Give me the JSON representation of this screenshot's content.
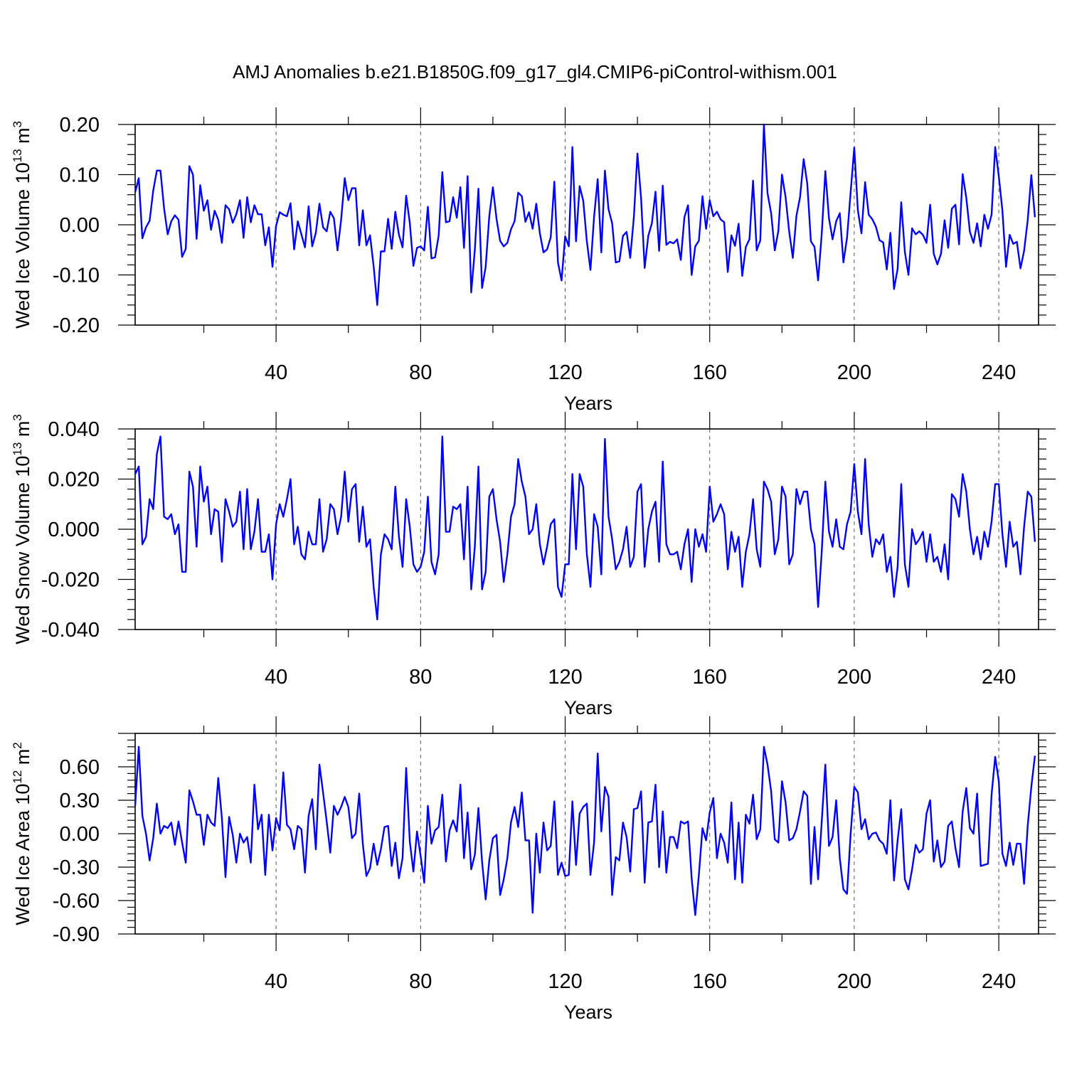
{
  "figure": {
    "title": "AMJ Anomalies b.e21.B1850G.f09_g17_gl4.CMIP6-piControl-withism.001",
    "colors": {
      "line": "#0000ff",
      "axis": "#000000",
      "grid": "#555555"
    }
  },
  "chart_data": [
    {
      "type": "line",
      "ylabel": {
        "base": "Wed Ice Volume 10",
        "exp": "13",
        "unit": " m",
        "unit_exp": "3"
      },
      "xlabel": "Years",
      "xlim": [
        1,
        251
      ],
      "ylim": [
        -0.2,
        0.2
      ],
      "xticks": [
        40,
        80,
        120,
        160,
        200,
        240
      ],
      "xtick_labels": [
        "40",
        "80",
        "120",
        "160",
        "200",
        "240"
      ],
      "yticks": [
        -0.2,
        -0.1,
        0.0,
        0.1,
        0.2
      ],
      "ytick_labels": [
        "-0.20",
        "-0.10",
        "0.00",
        "0.10",
        "0.20"
      ],
      "grid": "vertical dashed at major x ticks",
      "series": [
        {
          "x_start": 1,
          "x_step": 1,
          "values": [
            0.065,
            0.093,
            -0.027,
            -0.005,
            0.008,
            0.068,
            0.108,
            0.108,
            0.033,
            -0.019,
            0.007,
            0.019,
            0.01,
            -0.064,
            -0.048,
            0.117,
            0.1,
            -0.028,
            0.079,
            0.028,
            0.049,
            -0.01,
            0.028,
            0.01,
            -0.036,
            0.039,
            0.031,
            0.004,
            0.021,
            0.049,
            -0.026,
            0.055,
            0.005,
            0.039,
            0.021,
            0.021,
            -0.041,
            -0.005,
            -0.084,
            -0.002,
            0.025,
            0.02,
            0.017,
            0.043,
            -0.049,
            0.007,
            -0.019,
            -0.045,
            0.037,
            -0.043,
            -0.016,
            0.042,
            -0.005,
            -0.013,
            0.026,
            0.013,
            -0.051,
            0.01,
            0.093,
            0.049,
            0.073,
            0.073,
            -0.041,
            0.029,
            -0.041,
            -0.021,
            -0.083,
            -0.16,
            -0.053,
            -0.053,
            0.012,
            -0.048,
            0.026,
            -0.02,
            -0.045,
            0.058,
            0.004,
            -0.082,
            -0.046,
            -0.043,
            -0.051,
            0.036,
            -0.067,
            -0.065,
            -0.021,
            0.105,
            0.005,
            0.007,
            0.055,
            0.014,
            0.075,
            -0.046,
            0.097,
            -0.135,
            -0.05,
            0.072,
            -0.126,
            -0.084,
            0.017,
            0.075,
            0.012,
            -0.032,
            -0.043,
            -0.036,
            -0.009,
            0.007,
            0.064,
            0.057,
            0.006,
            0.025,
            -0.008,
            0.042,
            -0.017,
            -0.055,
            -0.049,
            -0.025,
            0.086,
            -0.075,
            -0.111,
            -0.023,
            -0.043,
            0.155,
            -0.033,
            0.077,
            0.048,
            -0.033,
            -0.09,
            0.016,
            0.091,
            -0.055,
            0.108,
            0.031,
            0.003,
            -0.075,
            -0.073,
            -0.022,
            -0.014,
            -0.066,
            0.014,
            0.142,
            0.054,
            -0.086,
            -0.022,
            0.003,
            0.066,
            -0.052,
            0.078,
            -0.04,
            -0.034,
            -0.037,
            -0.029,
            -0.07,
            0.015,
            0.039,
            -0.1,
            -0.043,
            -0.032,
            0.057,
            -0.008,
            0.049,
            0.017,
            0.026,
            0.011,
            0.005,
            -0.094,
            -0.021,
            -0.042,
            0.002,
            -0.102,
            -0.044,
            -0.029,
            0.088,
            -0.051,
            -0.031,
            0.2,
            0.063,
            0.023,
            -0.051,
            -0.012,
            0.1,
            0.055,
            -0.014,
            -0.066,
            0.018,
            0.055,
            0.131,
            0.082,
            -0.033,
            -0.044,
            -0.111,
            -0.018,
            0.107,
            0.013,
            -0.029,
            0.007,
            0.023,
            -0.075,
            -0.026,
            0.065,
            0.154,
            0.029,
            -0.017,
            0.085,
            0.02,
            0.011,
            -0.004,
            -0.031,
            -0.035,
            -0.089,
            -0.016,
            -0.128,
            -0.088,
            0.045,
            -0.054,
            -0.1,
            -0.007,
            -0.019,
            -0.013,
            -0.02,
            -0.036,
            0.04,
            -0.058,
            -0.079,
            -0.058,
            0.009,
            -0.046,
            0.032,
            0.04,
            -0.039,
            0.101,
            0.054,
            -0.014,
            -0.036,
            0.003,
            -0.043,
            0.02,
            -0.008,
            0.02,
            0.155,
            0.097,
            0.028,
            -0.084,
            -0.02,
            -0.038,
            -0.034,
            -0.087,
            -0.052,
            0.009,
            0.099,
            0.015
          ]
        }
      ]
    },
    {
      "type": "line",
      "ylabel": {
        "base": "Wed Snow Volume 10",
        "exp": "13",
        "unit": " m",
        "unit_exp": "3"
      },
      "xlabel": "Years",
      "xlim": [
        1,
        251
      ],
      "ylim": [
        -0.04,
        0.04
      ],
      "xticks": [
        40,
        80,
        120,
        160,
        200,
        240
      ],
      "xtick_labels": [
        "40",
        "80",
        "120",
        "160",
        "200",
        "240"
      ],
      "yticks": [
        -0.04,
        -0.02,
        0.0,
        0.02,
        0.04
      ],
      "ytick_labels": [
        "-0.040",
        "-0.020",
        "0.000",
        "0.020",
        "0.040"
      ],
      "grid": "vertical dashed at major x ticks",
      "series": [
        {
          "x_start": 1,
          "x_step": 1,
          "values": [
            0.022,
            0.025,
            -0.006,
            -0.003,
            0.012,
            0.008,
            0.03,
            0.037,
            0.005,
            0.004,
            0.006,
            -0.002,
            0.002,
            -0.017,
            -0.017,
            0.023,
            0.017,
            -0.007,
            0.025,
            0.011,
            0.017,
            -0.002,
            0.008,
            0.007,
            -0.013,
            0.012,
            0.007,
            0.001,
            0.003,
            0.015,
            -0.008,
            0.016,
            -0.008,
            -0.001,
            0.012,
            -0.009,
            -0.009,
            -0.002,
            -0.02,
            0.002,
            0.01,
            0.005,
            0.012,
            0.02,
            -0.006,
            0.001,
            -0.01,
            -0.012,
            -0.001,
            -0.006,
            -0.006,
            0.012,
            -0.009,
            -0.004,
            0.01,
            0.008,
            -0.002,
            0.005,
            0.023,
            0.003,
            0.016,
            0.018,
            -0.005,
            0.009,
            -0.007,
            -0.004,
            -0.023,
            -0.036,
            -0.01,
            -0.002,
            -0.004,
            -0.008,
            0.017,
            -0.003,
            -0.015,
            0.012,
            0.001,
            -0.014,
            -0.017,
            -0.015,
            -0.009,
            0.013,
            -0.013,
            -0.018,
            -0.01,
            0.037,
            -0.001,
            -0.001,
            0.009,
            0.008,
            0.01,
            -0.012,
            0.017,
            -0.024,
            -0.007,
            0.025,
            -0.024,
            -0.017,
            0.013,
            0.016,
            0.004,
            -0.005,
            -0.021,
            -0.01,
            0.005,
            0.01,
            0.028,
            0.019,
            0.013,
            -0.002,
            0.0,
            0.01,
            -0.006,
            -0.014,
            -0.007,
            0.002,
            0.004,
            -0.023,
            -0.027,
            -0.014,
            -0.014,
            0.022,
            -0.008,
            0.022,
            0.017,
            -0.01,
            -0.023,
            0.006,
            0.001,
            -0.018,
            0.036,
            0.005,
            -0.004,
            -0.016,
            -0.013,
            -0.008,
            0.001,
            -0.015,
            -0.011,
            0.015,
            0.018,
            -0.015,
            0.0,
            0.007,
            0.011,
            -0.013,
            0.027,
            -0.006,
            -0.01,
            -0.01,
            -0.009,
            -0.016,
            -0.006,
            0.0,
            -0.021,
            0.0,
            -0.007,
            -0.002,
            -0.009,
            0.017,
            0.003,
            0.006,
            0.01,
            0.006,
            -0.016,
            -0.001,
            -0.009,
            -0.003,
            -0.023,
            -0.009,
            -0.002,
            0.012,
            -0.008,
            -0.015,
            0.019,
            0.016,
            0.011,
            -0.01,
            -0.004,
            0.017,
            0.013,
            -0.014,
            -0.01,
            0.016,
            0.01,
            0.015,
            0.015,
            0.0,
            -0.006,
            -0.031,
            -0.009,
            0.019,
            -0.001,
            -0.007,
            0.004,
            -0.007,
            -0.008,
            0.002,
            0.007,
            0.026,
            0.007,
            -0.002,
            0.028,
            0.002,
            -0.011,
            -0.004,
            -0.006,
            -0.002,
            -0.017,
            -0.011,
            -0.027,
            -0.015,
            0.018,
            -0.014,
            -0.023,
            0.0,
            -0.006,
            -0.004,
            -0.001,
            -0.013,
            -0.002,
            -0.013,
            -0.011,
            -0.017,
            -0.006,
            -0.02,
            0.014,
            0.012,
            0.005,
            0.022,
            0.015,
            0.0,
            -0.01,
            -0.003,
            -0.012,
            -0.001,
            -0.007,
            0.003,
            0.018,
            0.018,
            -0.002,
            -0.015,
            0.003,
            -0.007,
            -0.005,
            -0.018,
            0.001,
            0.015,
            0.013,
            -0.005
          ]
        }
      ]
    },
    {
      "type": "line",
      "ylabel": {
        "base": "Wed Ice Area 10",
        "exp": "12",
        "unit": " m",
        "unit_exp": "2"
      },
      "xlabel": "Years",
      "xlim": [
        1,
        251
      ],
      "ylim": [
        -0.9,
        0.9
      ],
      "xticks": [
        40,
        80,
        120,
        160,
        200,
        240
      ],
      "xtick_labels": [
        "40",
        "80",
        "120",
        "160",
        "200",
        "240"
      ],
      "yticks": [
        -0.9,
        -0.6,
        -0.3,
        0.0,
        0.3,
        0.6
      ],
      "ytick_labels": [
        "-0.90",
        "-0.60",
        "-0.30",
        "0.00",
        "0.30",
        "0.60"
      ],
      "grid": "vertical dashed at major x ticks",
      "series": [
        {
          "x_start": 1,
          "x_step": 1,
          "values": [
            0.25,
            0.78,
            0.16,
            0.0,
            -0.24,
            -0.04,
            0.27,
            0.0,
            0.07,
            0.05,
            0.1,
            -0.1,
            0.11,
            -0.08,
            -0.26,
            0.39,
            0.29,
            0.17,
            0.17,
            -0.1,
            0.17,
            0.1,
            0.07,
            0.5,
            0.14,
            -0.39,
            0.15,
            -0.01,
            -0.26,
            0.0,
            -0.08,
            -0.03,
            -0.26,
            0.44,
            0.04,
            0.17,
            -0.37,
            0.17,
            -0.15,
            0.14,
            0.03,
            0.55,
            0.08,
            0.04,
            -0.14,
            0.07,
            0.04,
            -0.35,
            0.16,
            0.31,
            -0.14,
            0.62,
            0.37,
            0.11,
            -0.17,
            0.25,
            0.17,
            0.24,
            0.33,
            0.24,
            -0.04,
            0.0,
            0.36,
            -0.09,
            -0.38,
            -0.31,
            -0.09,
            -0.28,
            -0.14,
            0.06,
            0.07,
            -0.29,
            -0.08,
            -0.4,
            -0.22,
            0.59,
            -0.07,
            -0.34,
            0.02,
            -0.2,
            -0.44,
            0.25,
            -0.09,
            0.03,
            0.06,
            0.35,
            -0.25,
            0.03,
            0.12,
            0.02,
            0.44,
            -0.22,
            0.19,
            -0.32,
            -0.19,
            0.23,
            -0.25,
            -0.59,
            -0.24,
            -0.04,
            -0.01,
            -0.55,
            -0.41,
            -0.22,
            0.1,
            0.24,
            0.06,
            0.37,
            -0.06,
            -0.06,
            -0.71,
            0.0,
            -0.35,
            0.1,
            -0.15,
            -0.11,
            0.29,
            -0.37,
            -0.26,
            -0.38,
            -0.37,
            0.29,
            -0.28,
            0.18,
            0.24,
            0.27,
            -0.37,
            -0.08,
            0.72,
            0.02,
            0.42,
            0.33,
            -0.55,
            -0.21,
            -0.24,
            0.1,
            -0.03,
            -0.34,
            0.22,
            0.23,
            0.38,
            -0.44,
            0.1,
            0.11,
            0.44,
            -0.3,
            0.2,
            -0.35,
            -0.03,
            -0.03,
            -0.13,
            0.11,
            0.09,
            0.11,
            -0.4,
            -0.73,
            -0.37,
            0.05,
            -0.06,
            0.19,
            0.32,
            -0.22,
            0.0,
            -0.08,
            -0.26,
            0.28,
            -0.41,
            0.1,
            -0.44,
            0.17,
            0.09,
            0.35,
            -0.05,
            0.04,
            0.78,
            0.62,
            0.38,
            -0.05,
            -0.08,
            0.47,
            0.28,
            -0.06,
            -0.04,
            0.04,
            0.2,
            0.38,
            0.34,
            -0.45,
            0.06,
            -0.41,
            0.11,
            0.62,
            -0.11,
            -0.03,
            0.3,
            -0.22,
            -0.5,
            -0.54,
            0.0,
            0.42,
            0.37,
            0.04,
            0.13,
            -0.05,
            0.0,
            0.01,
            -0.06,
            -0.09,
            -0.18,
            0.3,
            -0.42,
            -0.06,
            0.22,
            -0.41,
            -0.5,
            -0.32,
            -0.1,
            -0.17,
            -0.14,
            0.18,
            0.3,
            -0.25,
            -0.06,
            -0.3,
            -0.25,
            0.07,
            0.11,
            -0.13,
            -0.3,
            0.2,
            0.41,
            0.05,
            0.0,
            0.36,
            -0.29,
            -0.28,
            -0.27,
            0.35,
            0.69,
            0.47,
            -0.18,
            -0.29,
            -0.08,
            -0.28,
            -0.09,
            -0.09,
            -0.45,
            0.07,
            0.42,
            0.7
          ]
        }
      ]
    }
  ]
}
